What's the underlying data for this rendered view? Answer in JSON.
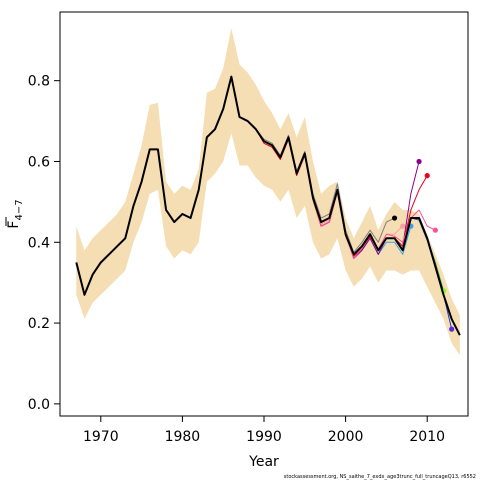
{
  "chart_data": {
    "type": "line",
    "xlabel": "Year",
    "ylabel": "F",
    "ylabel_subscript": "4−7",
    "footer": "stockassessment.org, NS_saithe_7_exdx_age3trunc_full_truncageQ13, r6552",
    "xlim": [
      1965,
      2015
    ],
    "ylim": [
      -0.03,
      0.97
    ],
    "xticks": [
      1970,
      1980,
      1990,
      2000,
      2010
    ],
    "yticks": [
      0.0,
      0.2,
      0.4,
      0.6,
      0.8
    ],
    "band_color": "#f5deb3",
    "band": {
      "x": [
        1967,
        1968,
        1969,
        1970,
        1971,
        1972,
        1973,
        1974,
        1975,
        1976,
        1977,
        1978,
        1979,
        1980,
        1981,
        1982,
        1983,
        1984,
        1985,
        1986,
        1987,
        1988,
        1989,
        1990,
        1991,
        1992,
        1993,
        1994,
        1995,
        1996,
        1997,
        1998,
        1999,
        2000,
        2001,
        2002,
        2003,
        2004,
        2005,
        2006,
        2007,
        2008,
        2009,
        2010,
        2011,
        2012,
        2013,
        2014
      ],
      "upper": [
        0.44,
        0.38,
        0.41,
        0.43,
        0.45,
        0.47,
        0.5,
        0.57,
        0.64,
        0.74,
        0.745,
        0.55,
        0.52,
        0.54,
        0.53,
        0.58,
        0.77,
        0.78,
        0.83,
        0.93,
        0.84,
        0.82,
        0.79,
        0.75,
        0.72,
        0.68,
        0.72,
        0.66,
        0.71,
        0.6,
        0.52,
        0.54,
        0.55,
        0.46,
        0.41,
        0.45,
        0.49,
        0.43,
        0.47,
        0.5,
        0.48,
        0.48,
        0.47,
        0.42,
        0.37,
        0.32,
        0.26,
        0.22
      ],
      "lower": [
        0.27,
        0.21,
        0.25,
        0.27,
        0.29,
        0.31,
        0.33,
        0.4,
        0.45,
        0.52,
        0.53,
        0.39,
        0.36,
        0.38,
        0.37,
        0.4,
        0.55,
        0.57,
        0.6,
        0.67,
        0.59,
        0.59,
        0.56,
        0.54,
        0.53,
        0.5,
        0.53,
        0.46,
        0.49,
        0.4,
        0.36,
        0.37,
        0.41,
        0.33,
        0.29,
        0.31,
        0.34,
        0.3,
        0.33,
        0.33,
        0.32,
        0.33,
        0.33,
        0.29,
        0.25,
        0.21,
        0.15,
        0.12
      ]
    },
    "series": [
      {
        "color": "#000000",
        "x": [
          1967,
          1968,
          1969,
          1970,
          1971,
          1972,
          1973,
          1974,
          1975,
          1976,
          1977,
          1978,
          1979,
          1980,
          1981,
          1982,
          1983,
          1984,
          1985,
          1986,
          1987,
          1988,
          1989,
          1990,
          1991,
          1992,
          1993,
          1994,
          1995,
          1996,
          1997,
          1998,
          1999,
          2000,
          2001,
          2002,
          2003,
          2004,
          2005,
          2006,
          2007,
          2008,
          2009,
          2010,
          2011,
          2012,
          2013,
          2014
        ],
        "values": [
          0.35,
          0.27,
          0.32,
          0.35,
          0.37,
          0.39,
          0.41,
          0.49,
          0.55,
          0.63,
          0.63,
          0.48,
          0.45,
          0.47,
          0.46,
          0.53,
          0.66,
          0.68,
          0.73,
          0.81,
          0.71,
          0.7,
          0.68,
          0.65,
          0.64,
          0.61,
          0.66,
          0.57,
          0.62,
          0.51,
          0.45,
          0.46,
          0.53,
          0.42,
          0.37,
          0.39,
          0.42,
          0.38,
          0.41,
          0.41,
          0.38,
          0.46,
          0.46,
          0.41,
          0.34,
          0.27,
          0.21,
          0.17
        ],
        "end_marker": false
      },
      {
        "color": "#7f7f7f",
        "x": [
          1967,
          1968,
          1969,
          1970,
          1971,
          1972,
          1973,
          1974,
          1975,
          1976,
          1977,
          1978,
          1979,
          1980,
          1981,
          1982,
          1983,
          1984,
          1985,
          1986,
          1987,
          1988,
          1989,
          1990,
          1991,
          1992,
          1993,
          1994,
          1995,
          1996,
          1997,
          1998,
          1999,
          2000,
          2001,
          2002,
          2003,
          2004,
          2005,
          2006
        ],
        "values": [
          0.35,
          0.27,
          0.32,
          0.35,
          0.37,
          0.39,
          0.41,
          0.49,
          0.55,
          0.63,
          0.63,
          0.48,
          0.45,
          0.47,
          0.46,
          0.53,
          0.66,
          0.68,
          0.73,
          0.81,
          0.71,
          0.7,
          0.68,
          0.655,
          0.645,
          0.615,
          0.665,
          0.575,
          0.625,
          0.52,
          0.46,
          0.47,
          0.545,
          0.43,
          0.375,
          0.4,
          0.43,
          0.4,
          0.45,
          0.46
        ],
        "end_marker": true,
        "marker_color": "#000000"
      },
      {
        "color": "#f4a3a3",
        "x": [
          1967,
          1968,
          1969,
          1970,
          1971,
          1972,
          1973,
          1974,
          1975,
          1976,
          1977,
          1978,
          1979,
          1980,
          1981,
          1982,
          1983,
          1984,
          1985,
          1986,
          1987,
          1988,
          1989,
          1990,
          1991,
          1992,
          1993,
          1994,
          1995,
          1996,
          1997,
          1998,
          1999,
          2000,
          2001,
          2002,
          2003,
          2004,
          2005,
          2006,
          2007
        ],
        "values": [
          0.35,
          0.27,
          0.32,
          0.35,
          0.37,
          0.39,
          0.41,
          0.49,
          0.55,
          0.63,
          0.63,
          0.48,
          0.45,
          0.47,
          0.46,
          0.53,
          0.66,
          0.68,
          0.73,
          0.81,
          0.71,
          0.7,
          0.68,
          0.65,
          0.64,
          0.61,
          0.66,
          0.57,
          0.62,
          0.51,
          0.445,
          0.455,
          0.53,
          0.42,
          0.37,
          0.39,
          0.42,
          0.385,
          0.42,
          0.42,
          0.44
        ],
        "end_marker": true,
        "marker_color": "#f4a3a3"
      },
      {
        "color": "#3aa0e6",
        "x": [
          1967,
          1968,
          1969,
          1970,
          1971,
          1972,
          1973,
          1974,
          1975,
          1976,
          1977,
          1978,
          1979,
          1980,
          1981,
          1982,
          1983,
          1984,
          1985,
          1986,
          1987,
          1988,
          1989,
          1990,
          1991,
          1992,
          1993,
          1994,
          1995,
          1996,
          1997,
          1998,
          1999,
          2000,
          2001,
          2002,
          2003,
          2004,
          2005,
          2006,
          2007,
          2008
        ],
        "values": [
          0.35,
          0.27,
          0.32,
          0.35,
          0.37,
          0.39,
          0.41,
          0.49,
          0.55,
          0.63,
          0.63,
          0.48,
          0.45,
          0.47,
          0.46,
          0.53,
          0.66,
          0.68,
          0.73,
          0.81,
          0.71,
          0.7,
          0.68,
          0.65,
          0.64,
          0.61,
          0.66,
          0.57,
          0.62,
          0.51,
          0.44,
          0.45,
          0.53,
          0.42,
          0.36,
          0.38,
          0.41,
          0.37,
          0.4,
          0.4,
          0.37,
          0.44
        ],
        "end_marker": true,
        "marker_color": "#3aa0e6"
      },
      {
        "color": "#8b008b",
        "x": [
          1967,
          1968,
          1969,
          1970,
          1971,
          1972,
          1973,
          1974,
          1975,
          1976,
          1977,
          1978,
          1979,
          1980,
          1981,
          1982,
          1983,
          1984,
          1985,
          1986,
          1987,
          1988,
          1989,
          1990,
          1991,
          1992,
          1993,
          1994,
          1995,
          1996,
          1997,
          1998,
          1999,
          2000,
          2001,
          2002,
          2003,
          2004,
          2005,
          2006,
          2007,
          2008,
          2009
        ],
        "values": [
          0.35,
          0.27,
          0.32,
          0.35,
          0.37,
          0.39,
          0.41,
          0.49,
          0.55,
          0.63,
          0.63,
          0.48,
          0.45,
          0.47,
          0.46,
          0.53,
          0.66,
          0.68,
          0.73,
          0.81,
          0.71,
          0.7,
          0.68,
          0.65,
          0.64,
          0.61,
          0.66,
          0.57,
          0.62,
          0.51,
          0.44,
          0.45,
          0.53,
          0.42,
          0.36,
          0.38,
          0.41,
          0.37,
          0.41,
          0.41,
          0.39,
          0.52,
          0.6
        ],
        "end_marker": true,
        "marker_color": "#8b008b"
      },
      {
        "color": "#e8001c",
        "x": [
          1967,
          1968,
          1969,
          1970,
          1971,
          1972,
          1973,
          1974,
          1975,
          1976,
          1977,
          1978,
          1979,
          1980,
          1981,
          1982,
          1983,
          1984,
          1985,
          1986,
          1987,
          1988,
          1989,
          1990,
          1991,
          1992,
          1993,
          1994,
          1995,
          1996,
          1997,
          1998,
          1999,
          2000,
          2001,
          2002,
          2003,
          2004,
          2005,
          2006,
          2007,
          2008,
          2009,
          2010
        ],
        "values": [
          0.35,
          0.27,
          0.32,
          0.35,
          0.37,
          0.39,
          0.41,
          0.49,
          0.55,
          0.63,
          0.63,
          0.48,
          0.45,
          0.47,
          0.46,
          0.53,
          0.66,
          0.68,
          0.73,
          0.81,
          0.71,
          0.7,
          0.68,
          0.645,
          0.635,
          0.605,
          0.655,
          0.565,
          0.615,
          0.505,
          0.44,
          0.45,
          0.525,
          0.415,
          0.365,
          0.385,
          0.415,
          0.38,
          0.41,
          0.41,
          0.39,
          0.48,
          0.53,
          0.565
        ],
        "end_marker": true,
        "marker_color": "#e8001c"
      },
      {
        "color": "#ff4f9a",
        "x": [
          1967,
          1968,
          1969,
          1970,
          1971,
          1972,
          1973,
          1974,
          1975,
          1976,
          1977,
          1978,
          1979,
          1980,
          1981,
          1982,
          1983,
          1984,
          1985,
          1986,
          1987,
          1988,
          1989,
          1990,
          1991,
          1992,
          1993,
          1994,
          1995,
          1996,
          1997,
          1998,
          1999,
          2000,
          2001,
          2002,
          2003,
          2004,
          2005,
          2006,
          2007,
          2008,
          2009,
          2010,
          2011
        ],
        "values": [
          0.35,
          0.27,
          0.32,
          0.35,
          0.37,
          0.39,
          0.41,
          0.49,
          0.55,
          0.63,
          0.63,
          0.48,
          0.45,
          0.47,
          0.46,
          0.53,
          0.66,
          0.68,
          0.73,
          0.81,
          0.71,
          0.7,
          0.68,
          0.65,
          0.64,
          0.61,
          0.66,
          0.57,
          0.62,
          0.51,
          0.44,
          0.45,
          0.53,
          0.42,
          0.36,
          0.385,
          0.42,
          0.38,
          0.42,
          0.415,
          0.4,
          0.46,
          0.48,
          0.44,
          0.43
        ],
        "end_marker": true,
        "marker_color": "#ff4f9a"
      },
      {
        "color": "#2ca02c",
        "x": [
          1967,
          1968,
          1969,
          1970,
          1971,
          1972,
          1973,
          1974,
          1975,
          1976,
          1977,
          1978,
          1979,
          1980,
          1981,
          1982,
          1983,
          1984,
          1985,
          1986,
          1987,
          1988,
          1989,
          1990,
          1991,
          1992,
          1993,
          1994,
          1995,
          1996,
          1997,
          1998,
          1999,
          2000,
          2001,
          2002,
          2003,
          2004,
          2005,
          2006,
          2007,
          2008,
          2009,
          2010,
          2011,
          2012
        ],
        "values": [
          0.35,
          0.27,
          0.32,
          0.35,
          0.37,
          0.39,
          0.41,
          0.49,
          0.55,
          0.63,
          0.63,
          0.48,
          0.45,
          0.47,
          0.46,
          0.53,
          0.66,
          0.68,
          0.73,
          0.81,
          0.71,
          0.7,
          0.68,
          0.65,
          0.64,
          0.61,
          0.66,
          0.57,
          0.62,
          0.51,
          0.45,
          0.46,
          0.53,
          0.42,
          0.37,
          0.39,
          0.42,
          0.38,
          0.41,
          0.41,
          0.38,
          0.46,
          0.46,
          0.41,
          0.35,
          0.28
        ],
        "end_marker": true,
        "marker_color": "#7fff00"
      },
      {
        "color": "#1f3fbf",
        "x": [
          1967,
          1968,
          1969,
          1970,
          1971,
          1972,
          1973,
          1974,
          1975,
          1976,
          1977,
          1978,
          1979,
          1980,
          1981,
          1982,
          1983,
          1984,
          1985,
          1986,
          1987,
          1988,
          1989,
          1990,
          1991,
          1992,
          1993,
          1994,
          1995,
          1996,
          1997,
          1998,
          1999,
          2000,
          2001,
          2002,
          2003,
          2004,
          2005,
          2006,
          2007,
          2008,
          2009,
          2010,
          2011,
          2012,
          2013
        ],
        "values": [
          0.35,
          0.27,
          0.32,
          0.35,
          0.37,
          0.39,
          0.41,
          0.49,
          0.55,
          0.63,
          0.63,
          0.48,
          0.45,
          0.47,
          0.46,
          0.53,
          0.66,
          0.68,
          0.73,
          0.81,
          0.71,
          0.7,
          0.68,
          0.65,
          0.64,
          0.61,
          0.66,
          0.57,
          0.62,
          0.51,
          0.45,
          0.46,
          0.53,
          0.42,
          0.37,
          0.39,
          0.42,
          0.38,
          0.41,
          0.41,
          0.38,
          0.46,
          0.455,
          0.405,
          0.34,
          0.27,
          0.185
        ],
        "end_marker": true,
        "marker_color": "#5b2bd9"
      }
    ]
  }
}
